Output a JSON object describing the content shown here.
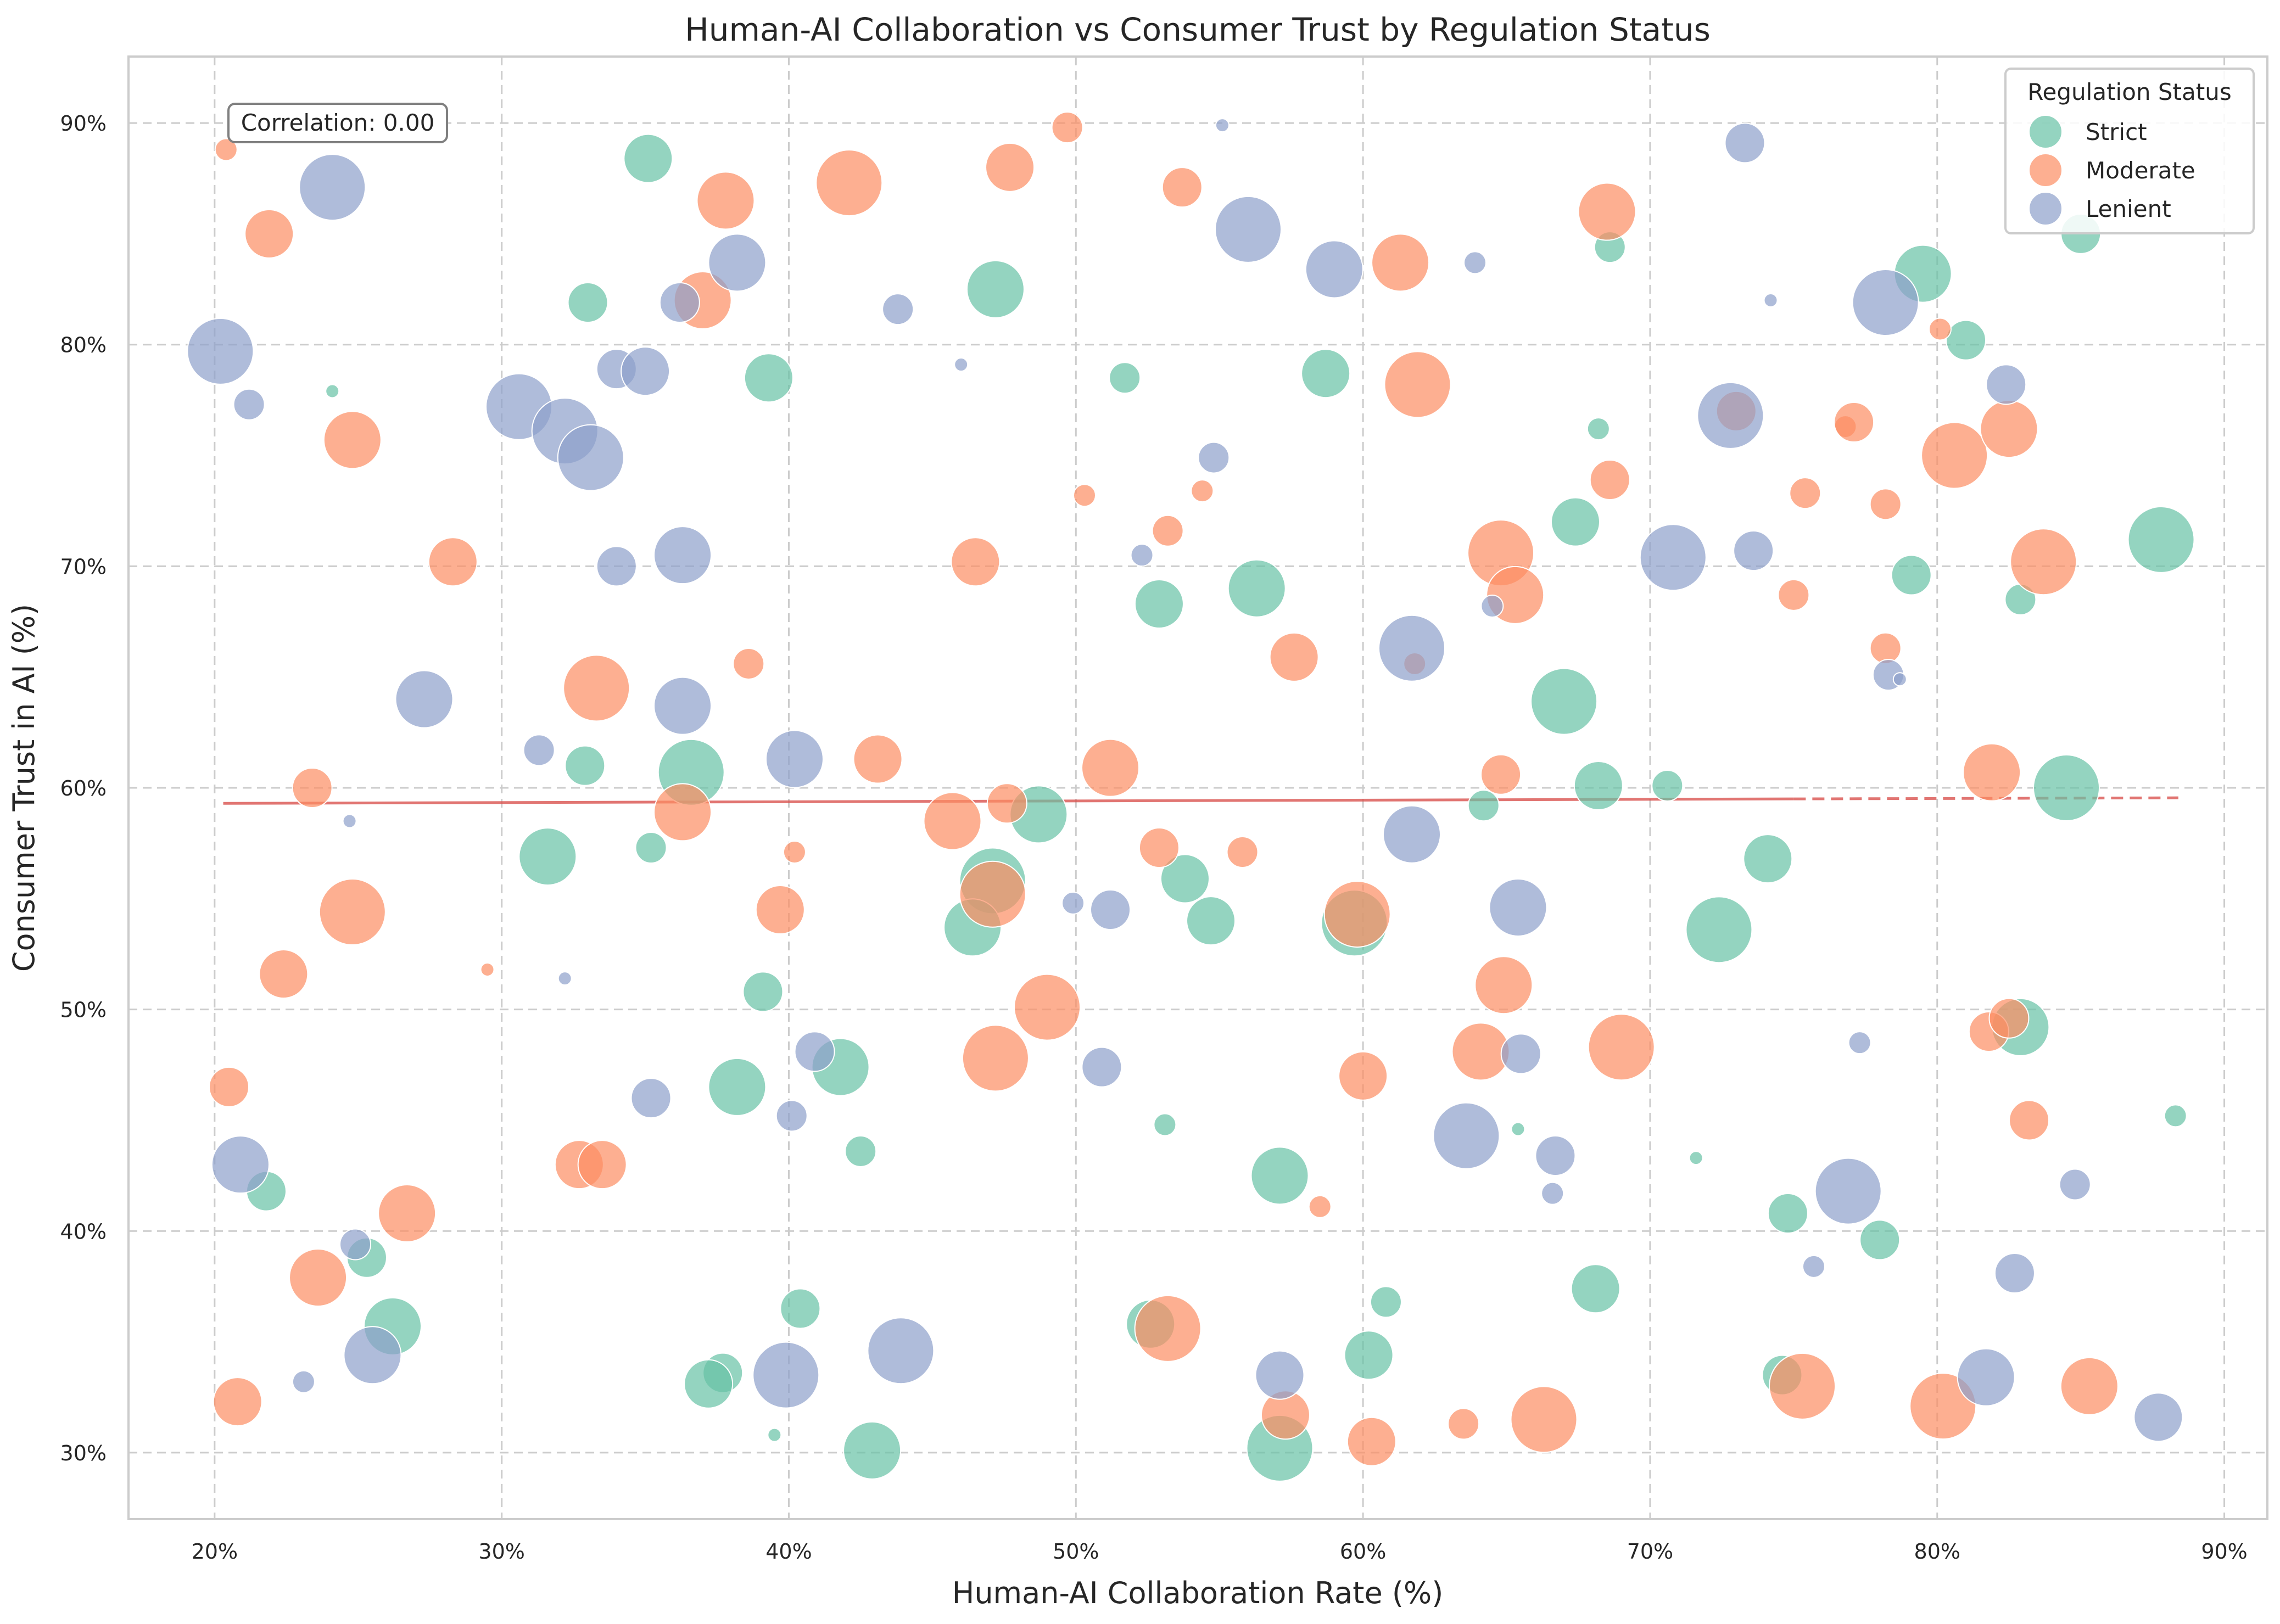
{
  "chart_data": {
    "type": "scatter",
    "title": "Human-AI Collaboration vs Consumer Trust by Regulation Status",
    "xlabel": "Human-AI Collaboration Rate (%)",
    "ylabel": "Consumer Trust in AI (%)",
    "xlim": [
      17,
      91.5
    ],
    "ylim": [
      27,
      93
    ],
    "x_ticks": [
      20,
      30,
      40,
      50,
      60,
      70,
      80,
      90
    ],
    "y_ticks": [
      30,
      40,
      50,
      60,
      70,
      80,
      90
    ],
    "tick_format": "percent",
    "grid": true,
    "legend_position": "top-right",
    "legend_title": "Regulation Status",
    "annotation": "Correlation: 0.00",
    "trend_line": {
      "x_start": 20.3,
      "x_end": 88.4,
      "y_start": 59.3,
      "y_end": 59.55,
      "solid_until_x": 75,
      "color": "#d9534f"
    },
    "series": [
      {
        "name": "Strict",
        "color": "#66c2a5",
        "points": [
          [
            35.1,
            88.4,
            5
          ],
          [
            47.2,
            82.5,
            6
          ],
          [
            33.0,
            81.9,
            4
          ],
          [
            24.1,
            77.9,
            1
          ],
          [
            39.3,
            78.5,
            5
          ],
          [
            51.7,
            78.5,
            3
          ],
          [
            58.7,
            78.7,
            5
          ],
          [
            68.6,
            84.4,
            3
          ],
          [
            79.5,
            83.2,
            6
          ],
          [
            81.0,
            80.2,
            4
          ],
          [
            85.0,
            85.0,
            4
          ],
          [
            68.2,
            76.2,
            2
          ],
          [
            67.4,
            72.0,
            5
          ],
          [
            79.1,
            69.6,
            4
          ],
          [
            82.9,
            68.5,
            3
          ],
          [
            87.8,
            71.2,
            7
          ],
          [
            56.3,
            69.0,
            6
          ],
          [
            52.9,
            68.3,
            5
          ],
          [
            67.0,
            63.9,
            7
          ],
          [
            32.9,
            61.0,
            4
          ],
          [
            36.6,
            60.7,
            7
          ],
          [
            31.6,
            56.9,
            6
          ],
          [
            35.2,
            57.3,
            3
          ],
          [
            48.7,
            58.8,
            6
          ],
          [
            47.1,
            55.8,
            7
          ],
          [
            46.4,
            53.7,
            6
          ],
          [
            53.8,
            55.9,
            5
          ],
          [
            54.7,
            54.0,
            5
          ],
          [
            59.7,
            53.9,
            7
          ],
          [
            64.2,
            59.2,
            3
          ],
          [
            68.2,
            60.1,
            5
          ],
          [
            70.6,
            60.1,
            3
          ],
          [
            74.1,
            56.8,
            5
          ],
          [
            72.4,
            53.6,
            7
          ],
          [
            84.5,
            60.0,
            7
          ],
          [
            39.1,
            50.8,
            4
          ],
          [
            82.9,
            49.2,
            6
          ],
          [
            41.8,
            47.4,
            6
          ],
          [
            38.2,
            46.5,
            6
          ],
          [
            42.5,
            43.6,
            3
          ],
          [
            53.1,
            44.8,
            2
          ],
          [
            65.4,
            44.6,
            1
          ],
          [
            71.6,
            43.3,
            1
          ],
          [
            88.3,
            45.2,
            2
          ],
          [
            57.1,
            42.5,
            6
          ],
          [
            74.8,
            40.8,
            4
          ],
          [
            78.0,
            39.6,
            4
          ],
          [
            21.8,
            41.8,
            4
          ],
          [
            25.3,
            38.8,
            4
          ],
          [
            26.2,
            35.7,
            6
          ],
          [
            40.4,
            36.5,
            4
          ],
          [
            60.8,
            36.8,
            3
          ],
          [
            68.1,
            37.4,
            5
          ],
          [
            37.7,
            33.6,
            4
          ],
          [
            37.2,
            33.1,
            5
          ],
          [
            39.5,
            30.8,
            1
          ],
          [
            42.9,
            30.1,
            6
          ],
          [
            52.6,
            35.8,
            5
          ],
          [
            57.1,
            30.2,
            7
          ],
          [
            60.2,
            34.4,
            5
          ],
          [
            74.6,
            33.5,
            4
          ]
        ]
      },
      {
        "name": "Moderate",
        "color": "#fc8d62",
        "points": [
          [
            20.4,
            88.8,
            2
          ],
          [
            21.9,
            85.0,
            5
          ],
          [
            37.8,
            86.5,
            6
          ],
          [
            42.1,
            87.3,
            7
          ],
          [
            47.7,
            88.0,
            5
          ],
          [
            49.7,
            89.8,
            3
          ],
          [
            53.7,
            87.1,
            4
          ],
          [
            68.5,
            86.0,
            6
          ],
          [
            37.0,
            82.0,
            6
          ],
          [
            61.3,
            83.7,
            6
          ],
          [
            24.8,
            75.7,
            6
          ],
          [
            28.3,
            70.2,
            5
          ],
          [
            61.9,
            78.2,
            7
          ],
          [
            50.3,
            73.2,
            2
          ],
          [
            53.2,
            71.6,
            3
          ],
          [
            54.4,
            73.4,
            2
          ],
          [
            46.5,
            70.2,
            5
          ],
          [
            64.8,
            70.6,
            7
          ],
          [
            65.3,
            68.7,
            6
          ],
          [
            68.6,
            73.9,
            4
          ],
          [
            73.0,
            77.0,
            4
          ],
          [
            76.8,
            76.3,
            2
          ],
          [
            77.1,
            76.5,
            4
          ],
          [
            75.4,
            73.3,
            3
          ],
          [
            75.0,
            68.7,
            3
          ],
          [
            78.2,
            72.8,
            3
          ],
          [
            80.1,
            80.7,
            2
          ],
          [
            80.6,
            75.0,
            7
          ],
          [
            82.5,
            76.2,
            6
          ],
          [
            83.7,
            70.2,
            7
          ],
          [
            78.2,
            66.3,
            3
          ],
          [
            33.3,
            64.5,
            7
          ],
          [
            38.6,
            65.6,
            3
          ],
          [
            57.6,
            65.9,
            5
          ],
          [
            61.8,
            65.6,
            2
          ],
          [
            23.4,
            60.0,
            4
          ],
          [
            36.3,
            58.9,
            6
          ],
          [
            43.1,
            61.3,
            5
          ],
          [
            47.6,
            59.3,
            4
          ],
          [
            51.2,
            60.9,
            6
          ],
          [
            45.7,
            58.5,
            6
          ],
          [
            52.9,
            57.3,
            4
          ],
          [
            55.8,
            57.1,
            3
          ],
          [
            64.8,
            60.6,
            4
          ],
          [
            81.9,
            60.7,
            6
          ],
          [
            40.2,
            57.1,
            2
          ],
          [
            47.1,
            55.2,
            7
          ],
          [
            39.7,
            54.5,
            5
          ],
          [
            24.8,
            54.4,
            7
          ],
          [
            22.4,
            51.6,
            5
          ],
          [
            29.5,
            51.8,
            1
          ],
          [
            49.0,
            50.1,
            7
          ],
          [
            59.8,
            54.3,
            7
          ],
          [
            64.9,
            51.1,
            6
          ],
          [
            47.2,
            47.8,
            7
          ],
          [
            60.0,
            47.0,
            5
          ],
          [
            64.1,
            48.1,
            6
          ],
          [
            69.0,
            48.3,
            7
          ],
          [
            81.8,
            49.0,
            4
          ],
          [
            82.5,
            49.6,
            4
          ],
          [
            83.2,
            45.0,
            4
          ],
          [
            20.5,
            46.5,
            4
          ],
          [
            32.7,
            43.0,
            5
          ],
          [
            33.5,
            43.0,
            5
          ],
          [
            26.7,
            40.8,
            6
          ],
          [
            23.6,
            37.9,
            6
          ],
          [
            58.5,
            41.1,
            2
          ],
          [
            53.2,
            35.6,
            7
          ],
          [
            57.3,
            31.7,
            5
          ],
          [
            60.3,
            30.5,
            5
          ],
          [
            63.5,
            31.3,
            3
          ],
          [
            66.3,
            31.5,
            7
          ],
          [
            75.3,
            33.0,
            7
          ],
          [
            80.2,
            32.1,
            7
          ],
          [
            85.3,
            33.0,
            6
          ],
          [
            20.8,
            32.3,
            5
          ]
        ]
      },
      {
        "name": "Lenient",
        "color": "#8da0cb",
        "points": [
          [
            24.1,
            87.1,
            7
          ],
          [
            20.2,
            79.7,
            7
          ],
          [
            21.2,
            77.3,
            3
          ],
          [
            38.2,
            83.7,
            6
          ],
          [
            36.2,
            81.9,
            4
          ],
          [
            43.8,
            81.6,
            3
          ],
          [
            46.0,
            79.1,
            1
          ],
          [
            55.1,
            89.9,
            1
          ],
          [
            56.0,
            85.2,
            7
          ],
          [
            59.0,
            83.4,
            6
          ],
          [
            63.9,
            83.7,
            2
          ],
          [
            73.3,
            89.1,
            4
          ],
          [
            74.2,
            82.0,
            1
          ],
          [
            78.2,
            81.9,
            7
          ],
          [
            82.4,
            78.2,
            4
          ],
          [
            30.6,
            77.2,
            7
          ],
          [
            32.2,
            76.1,
            7
          ],
          [
            33.1,
            74.9,
            7
          ],
          [
            34.0,
            78.9,
            4
          ],
          [
            35.0,
            78.8,
            5
          ],
          [
            34.0,
            70.0,
            4
          ],
          [
            36.3,
            70.5,
            6
          ],
          [
            27.3,
            64.0,
            6
          ],
          [
            31.3,
            61.7,
            3
          ],
          [
            36.3,
            63.7,
            6
          ],
          [
            40.2,
            61.3,
            6
          ],
          [
            52.3,
            70.5,
            2
          ],
          [
            54.8,
            74.9,
            3
          ],
          [
            64.5,
            68.2,
            2
          ],
          [
            61.7,
            66.3,
            7
          ],
          [
            70.8,
            70.4,
            7
          ],
          [
            72.8,
            76.8,
            7
          ],
          [
            73.6,
            70.7,
            4
          ],
          [
            78.3,
            65.1,
            3
          ],
          [
            78.7,
            64.9,
            1
          ],
          [
            24.7,
            58.5,
            1
          ],
          [
            32.2,
            51.4,
            1
          ],
          [
            49.9,
            54.8,
            2
          ],
          [
            51.2,
            54.5,
            4
          ],
          [
            61.7,
            57.9,
            6
          ],
          [
            65.4,
            54.6,
            6
          ],
          [
            40.9,
            48.1,
            4
          ],
          [
            35.2,
            46.0,
            4
          ],
          [
            40.1,
            45.2,
            3
          ],
          [
            50.9,
            47.4,
            4
          ],
          [
            65.5,
            48.0,
            4
          ],
          [
            77.3,
            48.5,
            2
          ],
          [
            63.6,
            44.3,
            7
          ],
          [
            66.7,
            43.4,
            4
          ],
          [
            66.6,
            41.7,
            2
          ],
          [
            76.9,
            41.8,
            7
          ],
          [
            84.8,
            42.1,
            3
          ],
          [
            20.9,
            43.0,
            6
          ],
          [
            24.9,
            39.4,
            3
          ],
          [
            25.5,
            34.4,
            6
          ],
          [
            23.1,
            33.2,
            2
          ],
          [
            39.9,
            33.5,
            7
          ],
          [
            43.9,
            34.6,
            7
          ],
          [
            57.1,
            33.5,
            5
          ],
          [
            75.7,
            38.4,
            2
          ],
          [
            82.7,
            38.1,
            4
          ],
          [
            81.7,
            33.4,
            6
          ],
          [
            87.7,
            31.6,
            5
          ]
        ]
      }
    ]
  }
}
